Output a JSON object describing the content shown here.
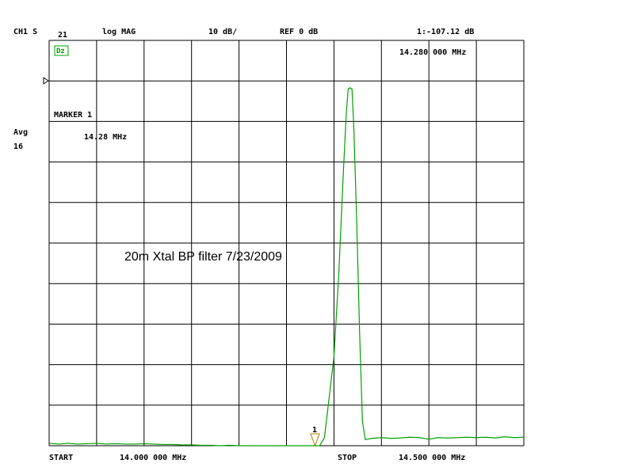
{
  "chart_data": {
    "type": "line",
    "title": "20m Xtal BP filter 7/23/2009",
    "header": {
      "channel": "CH1 S",
      "param": "21",
      "format": "log MAG",
      "scale": "10 dB/",
      "ref": "REF 0 dB",
      "marker_readout": "1:-107.12 dB",
      "marker_freq": "14.280 000 MHz"
    },
    "side": {
      "marker_label": "MARKER 1",
      "marker_value": "14.28 MHz",
      "avg": "Avg",
      "avg_count": "16",
      "status": "Dz"
    },
    "footer": {
      "start": "START",
      "start_freq": "14.000 000 MHz",
      "stop": "STOP",
      "stop_freq": "14.500 000 MHz"
    },
    "marker_number": "1",
    "xlim": [
      14.0,
      14.5
    ],
    "ylim": [
      -90,
      10
    ],
    "xticks": [
      14.0,
      14.05,
      14.1,
      14.15,
      14.2,
      14.25,
      14.3,
      14.35,
      14.4,
      14.45,
      14.5
    ],
    "yticks": [
      -90,
      -80,
      -70,
      -60,
      -50,
      -40,
      -30,
      -20,
      -10,
      0,
      10
    ],
    "grid": true,
    "x": [
      14.0,
      14.01,
      14.02,
      14.03,
      14.04,
      14.05,
      14.06,
      14.07,
      14.08,
      14.09,
      14.1,
      14.11,
      14.12,
      14.13,
      14.14,
      14.15,
      14.16,
      14.17,
      14.18,
      14.19,
      14.2,
      14.21,
      14.22,
      14.23,
      14.24,
      14.25,
      14.26,
      14.27,
      14.28,
      14.285,
      14.29,
      14.295,
      14.3,
      14.305,
      14.31,
      14.313,
      14.315,
      14.317,
      14.319,
      14.321,
      14.324,
      14.327,
      14.33,
      14.333,
      14.34,
      14.35,
      14.36,
      14.37,
      14.38,
      14.39,
      14.4,
      14.41,
      14.42,
      14.43,
      14.44,
      14.45,
      14.46,
      14.47,
      14.48,
      14.49,
      14.5
    ],
    "series": [
      {
        "color": "#00a000",
        "values": [
          -89.4,
          -89.6,
          -89.4,
          -89.6,
          -89.5,
          -89.4,
          -89.6,
          -89.5,
          -89.6,
          -89.6,
          -89.5,
          -89.6,
          -89.7,
          -89.7,
          -89.8,
          -89.8,
          -89.9,
          -89.9,
          -90,
          -89.9,
          -90,
          -90,
          -90,
          -90,
          -90,
          -90,
          -90,
          -90,
          -90,
          -90,
          -88,
          -78,
          -68,
          -48,
          -22,
          -8,
          -2,
          -1.7,
          -2,
          -12,
          -35,
          -62,
          -84,
          -88.5,
          -88.2,
          -88.0,
          -88.2,
          -88.1,
          -87.9,
          -88.0,
          -88.4,
          -88.0,
          -88.1,
          -88.0,
          -87.9,
          -88.0,
          -87.9,
          -88.1,
          -87.8,
          -88.0,
          -87.9
        ]
      }
    ]
  }
}
